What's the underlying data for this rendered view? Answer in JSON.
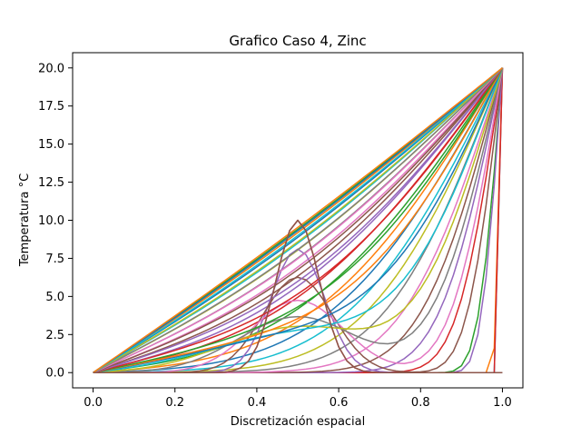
{
  "chart_data": {
    "type": "line",
    "title": "Grafico Caso 4, Zinc",
    "xlabel": "Discretización espacial",
    "ylabel": "Temperatura °C",
    "xlim": [
      -0.05,
      1.05
    ],
    "ylim": [
      -1.0,
      21.0
    ],
    "xticks": [
      0.0,
      0.2,
      0.4,
      0.6,
      0.8,
      1.0
    ],
    "xtick_labels": [
      "0.0",
      "0.2",
      "0.4",
      "0.6",
      "0.8",
      "1.0"
    ],
    "yticks": [
      0.0,
      2.5,
      5.0,
      7.5,
      10.0,
      12.5,
      15.0,
      17.5,
      20.0
    ],
    "ytick_labels": [
      "0.0",
      "2.5",
      "5.0",
      "7.5",
      "10.0",
      "12.5",
      "15.0",
      "17.5",
      "20.0"
    ],
    "grid": false,
    "legend": "none",
    "x": [
      0.0,
      0.02,
      0.04,
      0.06,
      0.08,
      0.1,
      0.12,
      0.14,
      0.16,
      0.18,
      0.2,
      0.22,
      0.24,
      0.26,
      0.28,
      0.3,
      0.32,
      0.34,
      0.36,
      0.38,
      0.4,
      0.42,
      0.44,
      0.46,
      0.48,
      0.5,
      0.52,
      0.54,
      0.56,
      0.58,
      0.6,
      0.62,
      0.64,
      0.66,
      0.68,
      0.7,
      0.72,
      0.74,
      0.76,
      0.78,
      0.8,
      0.82,
      0.84,
      0.86,
      0.88,
      0.9,
      0.92,
      0.94,
      0.96,
      0.98,
      1.0
    ],
    "series": [
      {
        "values": [
          0.0,
          0.0,
          0.0,
          0.0,
          0.0,
          0.0,
          0.0,
          0.0,
          0.0,
          0.0,
          0.0,
          0.0,
          0.0,
          0.0,
          0.0,
          0.0,
          0.0,
          0.0,
          0.0,
          0.0,
          0.0,
          0.0,
          0.0,
          0.0,
          0.0,
          0.0,
          0.0,
          0.0,
          0.0,
          0.0,
          0.0,
          0.0,
          0.0,
          0.0,
          0.0,
          0.0,
          0.0,
          0.0,
          0.0,
          0.0,
          0.0,
          0.0,
          0.0,
          0.0,
          0.0,
          0.0,
          0.0,
          0.0,
          0.0,
          0.0,
          20.0
        ]
      },
      {
        "values": [
          0.0,
          0.0,
          0.0,
          0.0,
          0.0,
          0.0,
          0.0,
          0.0,
          0.0,
          0.0,
          0.0,
          0.0,
          0.0,
          0.0,
          0.0,
          0.0,
          0.0,
          0.0,
          0.0,
          0.0,
          0.0,
          0.0,
          0.0,
          0.0,
          0.0,
          0.0,
          0.0,
          0.0,
          0.0,
          0.0,
          0.0,
          0.0,
          0.0,
          0.0,
          0.0,
          0.0,
          0.0,
          0.0,
          0.0,
          0.0,
          0.0,
          0.0,
          0.0,
          0.0,
          0.0,
          0.0,
          0.0,
          0.0,
          0.0,
          1.6,
          20.0
        ]
      }
    ],
    "colors": [
      "#1f77b4",
      "#ff7f0e",
      "#2ca02c",
      "#d62728",
      "#9467bd",
      "#8c564b",
      "#e377c2",
      "#7f7f7f",
      "#bcbd22",
      "#17becf"
    ],
    "background": "#ffffff"
  }
}
